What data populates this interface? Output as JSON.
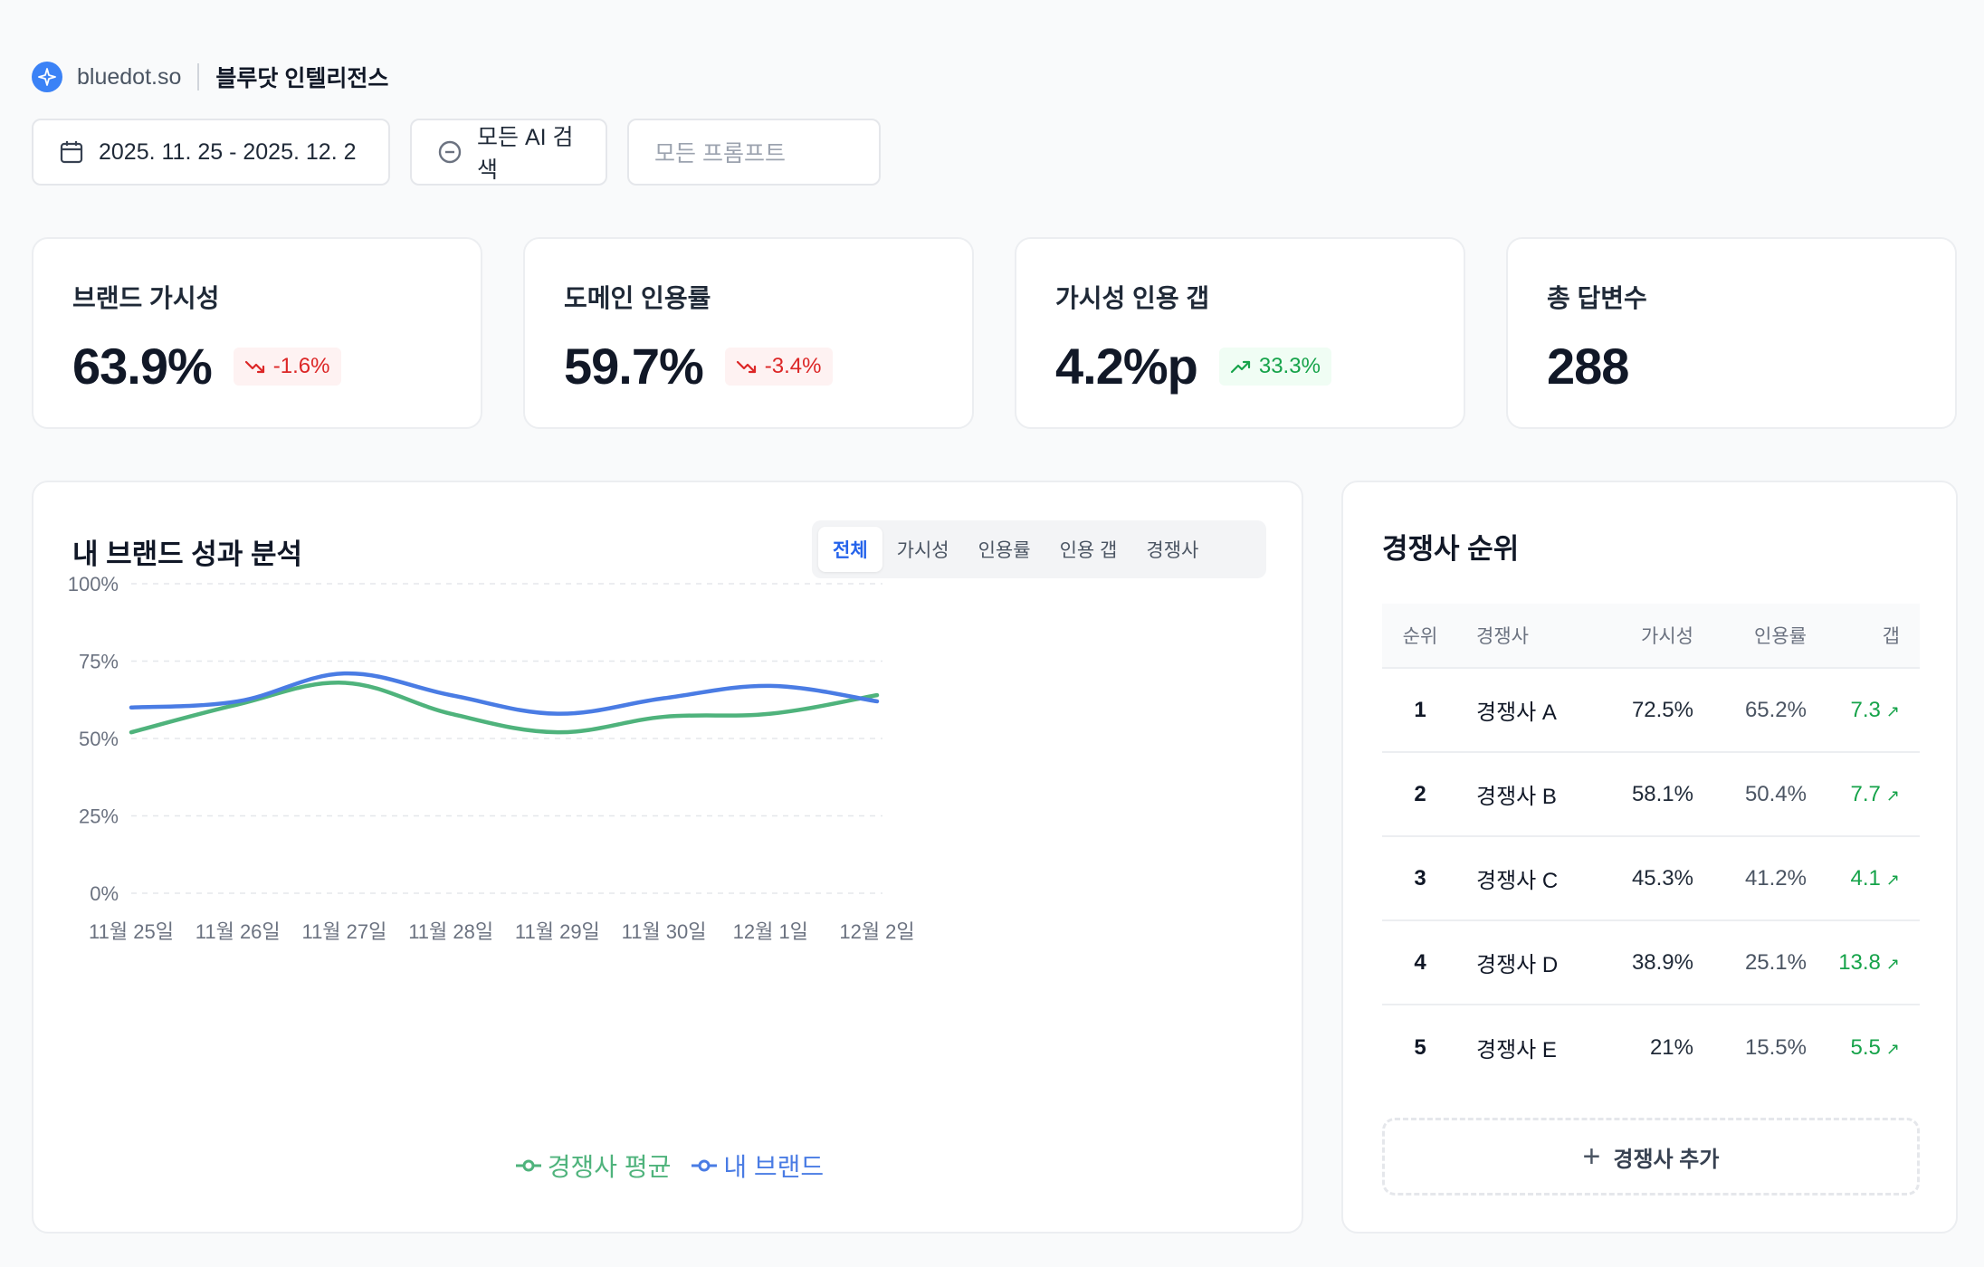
{
  "header": {
    "domain": "bluedot.so",
    "product_name": "블루닷 인텔리전스",
    "logo_icon": "sparkle-icon"
  },
  "filters": {
    "date_range": "2025. 11. 25 - 2025. 12. 2",
    "ai_search": "모든 AI 검색",
    "prompt_placeholder": "모든 프롬프트"
  },
  "kpis": [
    {
      "label": "브랜드 가시성",
      "value": "63.9%",
      "delta": "-1.6%",
      "trend": "down"
    },
    {
      "label": "도메인 인용률",
      "value": "59.7%",
      "delta": "-3.4%",
      "trend": "down"
    },
    {
      "label": "가시성 인용 갭",
      "value": "4.2%p",
      "delta": "33.3%",
      "trend": "up"
    },
    {
      "label": "총 답변수",
      "value": "288",
      "delta": "",
      "trend": ""
    }
  ],
  "performance": {
    "title": "내 브랜드 성과 분석",
    "tabs": [
      "전체",
      "가시성",
      "인용률",
      "인용 갭",
      "경쟁사"
    ],
    "active_tab": "전체"
  },
  "chart_data": {
    "type": "line",
    "categories": [
      "11월 25일",
      "11월 26일",
      "11월 27일",
      "11월 28일",
      "11월 29일",
      "11월 30일",
      "12월 1일",
      "12월 2일"
    ],
    "y_ticks": [
      "0%",
      "25%",
      "50%",
      "75%",
      "100%"
    ],
    "ylim": [
      0,
      100
    ],
    "grid": true,
    "legend_position": "bottom",
    "series": [
      {
        "name": "경쟁사 평균",
        "color": "#4fb37c",
        "values": [
          52,
          61,
          68,
          58,
          52,
          57,
          58,
          64
        ]
      },
      {
        "name": "내 브랜드",
        "color": "#4a7ce4",
        "values": [
          60,
          62,
          71,
          64,
          58,
          63,
          67,
          62
        ]
      }
    ]
  },
  "competitors": {
    "title": "경쟁사 순위",
    "headers": {
      "rank": "순위",
      "name": "경쟁사",
      "visibility": "가시성",
      "citation": "인용률",
      "gap": "갭"
    },
    "rows": [
      {
        "rank": "1",
        "name": "경쟁사 A",
        "visibility": "72.5%",
        "citation": "65.2%",
        "gap": "7.3"
      },
      {
        "rank": "2",
        "name": "경쟁사 B",
        "visibility": "58.1%",
        "citation": "50.4%",
        "gap": "7.7"
      },
      {
        "rank": "3",
        "name": "경쟁사 C",
        "visibility": "45.3%",
        "citation": "41.2%",
        "gap": "4.1"
      },
      {
        "rank": "4",
        "name": "경쟁사 D",
        "visibility": "38.9%",
        "citation": "25.1%",
        "gap": "13.8"
      },
      {
        "rank": "5",
        "name": "경쟁사 E",
        "visibility": "21%",
        "citation": "15.5%",
        "gap": "5.5"
      }
    ],
    "add_label": "경쟁사 추가"
  }
}
